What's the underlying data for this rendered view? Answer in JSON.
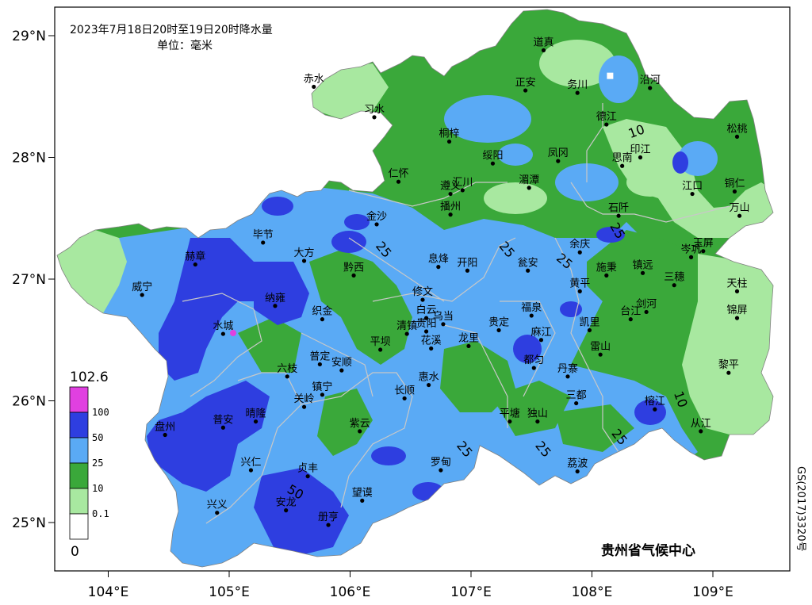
{
  "title": "2023年7月18日20时至19日20时降水量",
  "unit_label": "单位：毫米",
  "agency": "贵州省气候中心",
  "map_approval": "GS(2017)3320号",
  "axes": {
    "lon_ticks": [
      {
        "value": 104,
        "label": "104°E"
      },
      {
        "value": 105,
        "label": "105°E"
      },
      {
        "value": 106,
        "label": "106°E"
      },
      {
        "value": 107,
        "label": "107°E"
      },
      {
        "value": 108,
        "label": "108°E"
      },
      {
        "value": 109,
        "label": "109°E"
      }
    ],
    "lat_ticks": [
      {
        "value": 29,
        "label": "29°N"
      },
      {
        "value": 28,
        "label": "28°N"
      },
      {
        "value": 27,
        "label": "27°N"
      },
      {
        "value": 26,
        "label": "26°N"
      },
      {
        "value": 25,
        "label": "25°N"
      }
    ]
  },
  "legend": {
    "max_label": "102.6",
    "min_label": "0",
    "bands": [
      {
        "label": "100",
        "color": "#e040e0"
      },
      {
        "label": "50",
        "color": "#2e3ee0"
      },
      {
        "label": "25",
        "color": "#5aaaf5"
      },
      {
        "label": "10",
        "color": "#3aa83a"
      },
      {
        "label": "0.1",
        "color": "#a8e8a0"
      },
      {
        "label": "",
        "color": "#ffffff"
      }
    ]
  },
  "colors": {
    "rain_0_1": "#a8e8a0",
    "rain_10": "#3aa83a",
    "rain_25": "#5aaaf5",
    "rain_50": "#2e3ee0",
    "rain_100": "#e040e0",
    "boundary": "#c8c8c8"
  },
  "cities": [
    {
      "name": "道真",
      "lon": 107.6,
      "lat": 28.88
    },
    {
      "name": "赤水",
      "lon": 105.7,
      "lat": 28.58
    },
    {
      "name": "习水",
      "lon": 106.2,
      "lat": 28.33
    },
    {
      "name": "正安",
      "lon": 107.45,
      "lat": 28.55
    },
    {
      "name": "务川",
      "lon": 107.88,
      "lat": 28.53
    },
    {
      "name": "沿河",
      "lon": 108.48,
      "lat": 28.57
    },
    {
      "name": "德江",
      "lon": 108.12,
      "lat": 28.27
    },
    {
      "name": "松桃",
      "lon": 109.2,
      "lat": 28.17
    },
    {
      "name": "桐梓",
      "lon": 106.82,
      "lat": 28.13
    },
    {
      "name": "绥阳",
      "lon": 107.18,
      "lat": 27.95
    },
    {
      "name": "凤冈",
      "lon": 107.72,
      "lat": 27.97
    },
    {
      "name": "印江",
      "lon": 108.4,
      "lat": 28.0
    },
    {
      "name": "思南",
      "lon": 108.25,
      "lat": 27.93
    },
    {
      "name": "仁怀",
      "lon": 106.4,
      "lat": 27.8
    },
    {
      "name": "遵义",
      "lon": 106.83,
      "lat": 27.7
    },
    {
      "name": "汇川",
      "lon": 106.93,
      "lat": 27.73
    },
    {
      "name": "湄潭",
      "lon": 107.48,
      "lat": 27.75
    },
    {
      "name": "江口",
      "lon": 108.83,
      "lat": 27.7
    },
    {
      "name": "铜仁",
      "lon": 109.18,
      "lat": 27.72
    },
    {
      "name": "播州",
      "lon": 106.83,
      "lat": 27.53
    },
    {
      "name": "石阡",
      "lon": 108.22,
      "lat": 27.52
    },
    {
      "name": "万山",
      "lon": 109.22,
      "lat": 27.52
    },
    {
      "name": "金沙",
      "lon": 106.22,
      "lat": 27.45
    },
    {
      "name": "余庆",
      "lon": 107.9,
      "lat": 27.22
    },
    {
      "name": "岑巩",
      "lon": 108.82,
      "lat": 27.18
    },
    {
      "name": "玉屏",
      "lon": 108.92,
      "lat": 27.23
    },
    {
      "name": "毕节",
      "lon": 105.28,
      "lat": 27.3
    },
    {
      "name": "大方",
      "lon": 105.62,
      "lat": 27.15
    },
    {
      "name": "赫章",
      "lon": 104.72,
      "lat": 27.12
    },
    {
      "name": "息烽",
      "lon": 106.73,
      "lat": 27.1
    },
    {
      "name": "开阳",
      "lon": 106.97,
      "lat": 27.07
    },
    {
      "name": "瓮安",
      "lon": 107.47,
      "lat": 27.07
    },
    {
      "name": "施秉",
      "lon": 108.12,
      "lat": 27.03
    },
    {
      "name": "镇远",
      "lon": 108.42,
      "lat": 27.05
    },
    {
      "name": "三穗",
      "lon": 108.68,
      "lat": 26.95
    },
    {
      "name": "黔西",
      "lon": 106.03,
      "lat": 27.03
    },
    {
      "name": "天柱",
      "lon": 109.2,
      "lat": 26.9
    },
    {
      "name": "黄平",
      "lon": 107.9,
      "lat": 26.9
    },
    {
      "name": "威宁",
      "lon": 104.28,
      "lat": 26.87
    },
    {
      "name": "修文",
      "lon": 106.6,
      "lat": 26.83
    },
    {
      "name": "纳雍",
      "lon": 105.38,
      "lat": 26.78
    },
    {
      "name": "剑河",
      "lon": 108.45,
      "lat": 26.73
    },
    {
      "name": "锦屏",
      "lon": 109.2,
      "lat": 26.68
    },
    {
      "name": "台江",
      "lon": 108.32,
      "lat": 26.67
    },
    {
      "name": "福泉",
      "lon": 107.5,
      "lat": 26.7
    },
    {
      "name": "织金",
      "lon": 105.77,
      "lat": 26.67
    },
    {
      "name": "白云",
      "lon": 106.63,
      "lat": 26.68
    },
    {
      "name": "乌当",
      "lon": 106.77,
      "lat": 26.63
    },
    {
      "name": "凯里",
      "lon": 107.98,
      "lat": 26.58
    },
    {
      "name": "清镇",
      "lon": 106.47,
      "lat": 26.55
    },
    {
      "name": "贵阳",
      "lon": 106.63,
      "lat": 26.57
    },
    {
      "name": "贵定",
      "lon": 107.23,
      "lat": 26.58
    },
    {
      "name": "水城",
      "lon": 104.95,
      "lat": 26.55
    },
    {
      "name": "麻江",
      "lon": 107.58,
      "lat": 26.5
    },
    {
      "name": "龙里",
      "lon": 106.98,
      "lat": 26.45
    },
    {
      "name": "花溪",
      "lon": 106.67,
      "lat": 26.43
    },
    {
      "name": "雷山",
      "lon": 108.07,
      "lat": 26.38
    },
    {
      "name": "平坝",
      "lon": 106.25,
      "lat": 26.42
    },
    {
      "name": "都匀",
      "lon": 107.52,
      "lat": 26.27
    },
    {
      "name": "普定",
      "lon": 105.75,
      "lat": 26.3
    },
    {
      "name": "安顺",
      "lon": 105.93,
      "lat": 26.25
    },
    {
      "name": "六枝",
      "lon": 105.48,
      "lat": 26.2
    },
    {
      "name": "丹寨",
      "lon": 107.8,
      "lat": 26.2
    },
    {
      "name": "黎平",
      "lon": 109.13,
      "lat": 26.23
    },
    {
      "name": "惠水",
      "lon": 106.65,
      "lat": 26.13
    },
    {
      "name": "镇宁",
      "lon": 105.77,
      "lat": 26.05
    },
    {
      "name": "长顺",
      "lon": 106.45,
      "lat": 26.02
    },
    {
      "name": "三都",
      "lon": 107.87,
      "lat": 25.98
    },
    {
      "name": "榕江",
      "lon": 108.52,
      "lat": 25.93
    },
    {
      "name": "关岭",
      "lon": 105.62,
      "lat": 25.95
    },
    {
      "name": "晴隆",
      "lon": 105.22,
      "lat": 25.83
    },
    {
      "name": "平塘",
      "lon": 107.32,
      "lat": 25.83
    },
    {
      "name": "独山",
      "lon": 107.55,
      "lat": 25.83
    },
    {
      "name": "普安",
      "lon": 104.95,
      "lat": 25.78
    },
    {
      "name": "紫云",
      "lon": 106.08,
      "lat": 25.75
    },
    {
      "name": "从江",
      "lon": 108.9,
      "lat": 25.75
    },
    {
      "name": "盘州",
      "lon": 104.47,
      "lat": 25.72
    },
    {
      "name": "罗甸",
      "lon": 106.75,
      "lat": 25.43
    },
    {
      "name": "兴仁",
      "lon": 105.18,
      "lat": 25.43
    },
    {
      "name": "贞丰",
      "lon": 105.65,
      "lat": 25.38
    },
    {
      "name": "荔波",
      "lon": 107.88,
      "lat": 25.42
    },
    {
      "name": "望谟",
      "lon": 106.1,
      "lat": 25.18
    },
    {
      "name": "兴义",
      "lon": 104.9,
      "lat": 25.08
    },
    {
      "name": "安龙",
      "lon": 105.47,
      "lat": 25.1
    },
    {
      "name": "册亨",
      "lon": 105.82,
      "lat": 24.98
    }
  ],
  "contour_labels": [
    {
      "text": "10",
      "lon": 108.38,
      "lat": 28.18,
      "rotate": -20
    },
    {
      "text": "25",
      "lon": 108.18,
      "lat": 27.38,
      "rotate": 60
    },
    {
      "text": "25",
      "lon": 106.25,
      "lat": 27.22,
      "rotate": 50
    },
    {
      "text": "25",
      "lon": 107.27,
      "lat": 27.22,
      "rotate": 50
    },
    {
      "text": "25",
      "lon": 107.75,
      "lat": 27.12,
      "rotate": 40
    },
    {
      "text": "10",
      "lon": 108.7,
      "lat": 26.0,
      "rotate": 70
    },
    {
      "text": "25",
      "lon": 108.2,
      "lat": 25.68,
      "rotate": 50
    },
    {
      "text": "25",
      "lon": 107.57,
      "lat": 25.58,
      "rotate": 50
    },
    {
      "text": "25",
      "lon": 106.92,
      "lat": 25.58,
      "rotate": 50
    },
    {
      "text": "50",
      "lon": 105.53,
      "lat": 25.22,
      "rotate": 30
    }
  ],
  "missing_marker": {
    "lon": 108.15,
    "lat": 28.67
  }
}
